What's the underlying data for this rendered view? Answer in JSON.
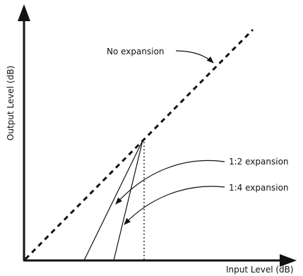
{
  "labels": {
    "no_expansion": "No expansion",
    "ratio_1_2": "1:2 expansion",
    "ratio_1_4": "1:4 expansion",
    "x_axis": "Input Level (dB)",
    "y_axis": "Output Level (dB)"
  },
  "colors": {
    "ink": "#111111",
    "background": "#ffffff"
  }
}
